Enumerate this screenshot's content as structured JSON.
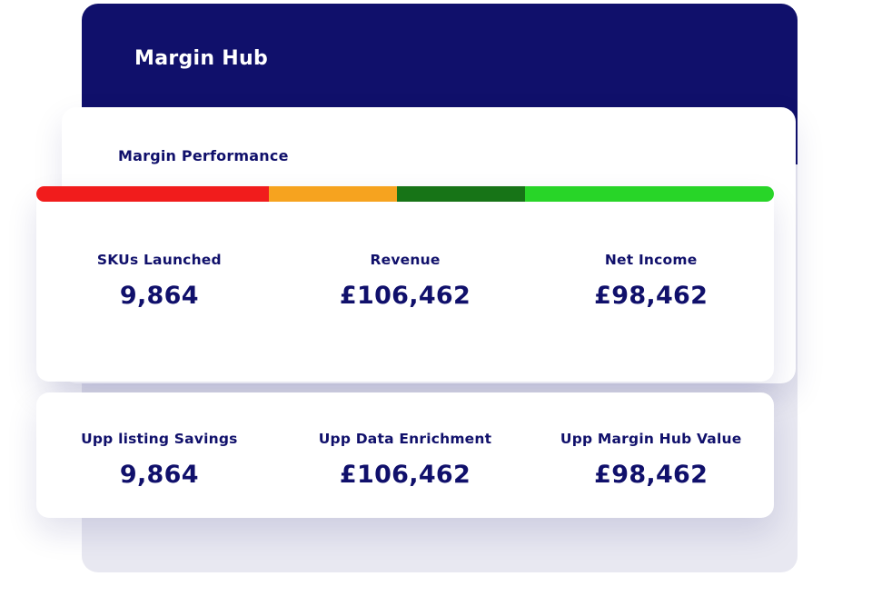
{
  "header": {
    "title": "Margin Hub"
  },
  "performance_section": {
    "title": "Margin Performance"
  },
  "colors": {
    "navy": "#10106b",
    "panel_gray": "#e8e8f1",
    "card_white": "#ffffff"
  },
  "gauge": {
    "segments": [
      {
        "name": "red",
        "color": "#f11c1c",
        "width_pct": 31.5
      },
      {
        "name": "orange",
        "color": "#f6a31f",
        "width_pct": 17.4
      },
      {
        "name": "dark-green",
        "color": "#177417",
        "width_pct": 17.4
      },
      {
        "name": "bright-green",
        "color": "#28d528",
        "width_pct": 33.7
      }
    ]
  },
  "stats_top": [
    {
      "label": "SKUs Launched",
      "value": "9,864"
    },
    {
      "label": "Revenue",
      "value": "£106,462"
    },
    {
      "label": "Net Income",
      "value": "£98,462"
    }
  ],
  "stats_bottom": [
    {
      "label": "Upp listing Savings",
      "value": "9,864"
    },
    {
      "label": "Upp Data Enrichment",
      "value": "£106,462"
    },
    {
      "label": "Upp Margin Hub Value",
      "value": "£98,462"
    }
  ]
}
